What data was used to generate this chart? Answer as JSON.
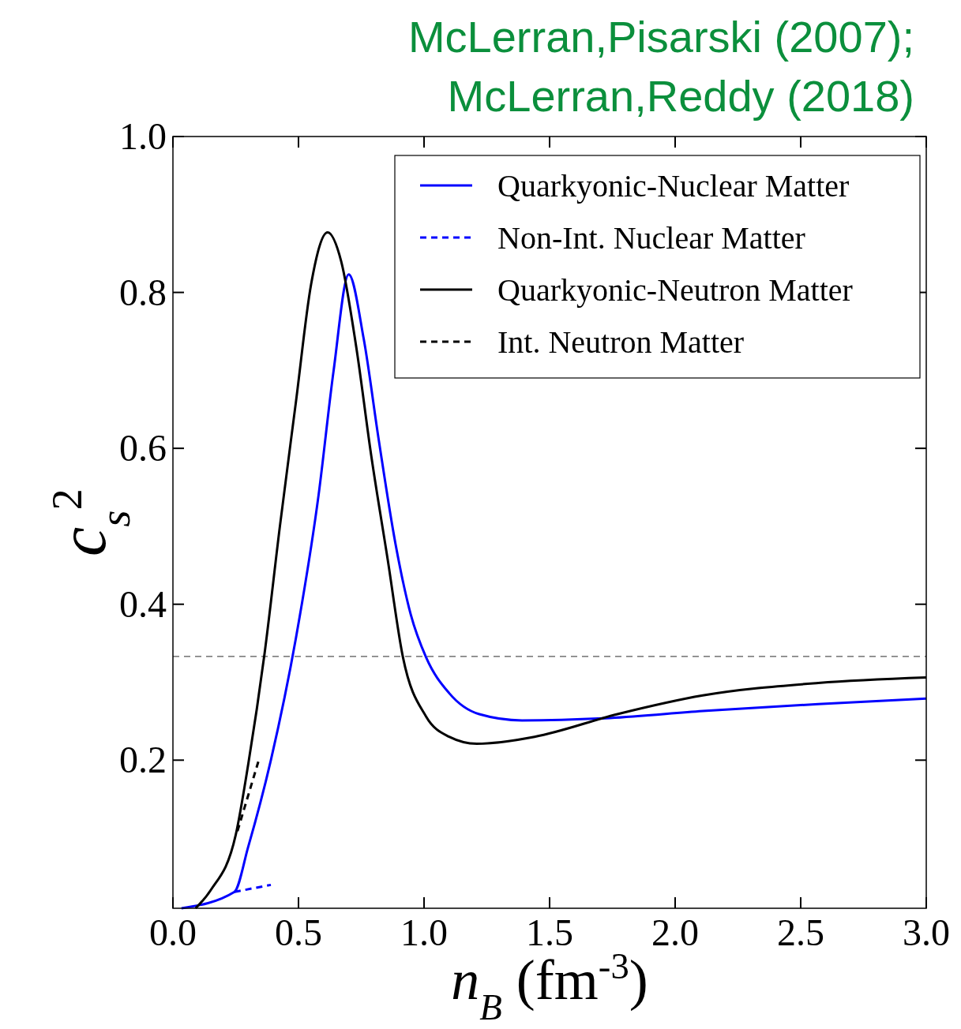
{
  "chart_data": {
    "type": "line",
    "title": "McLerran,Pisarski (2007); McLerran,Reddy (2018)",
    "xlabel": "n$_{B}$ (fm$^{-3}$)",
    "ylabel": "c$_{s}$$^{2}$",
    "xlim": [
      0,
      3.0
    ],
    "ylim": [
      0.01,
      1.0
    ],
    "xticks": [
      {
        "value": 0,
        "label": "0.0"
      },
      {
        "value": 0.5,
        "label": "0.5"
      },
      {
        "value": 1,
        "label": "1.0"
      },
      {
        "value": 1.5,
        "label": "1.5"
      },
      {
        "value": 2,
        "label": "2.0"
      },
      {
        "value": 2.5,
        "label": "2.5"
      },
      {
        "value": 3,
        "label": "3.0"
      }
    ],
    "yticks": [
      {
        "value": 0.2,
        "label": "0.2"
      },
      {
        "value": 0.4,
        "label": "0.4"
      },
      {
        "value": 0.6,
        "label": "0.6"
      },
      {
        "value": 0.8,
        "label": "0.8"
      },
      {
        "value": 1,
        "label": "1.0"
      }
    ],
    "grid": false,
    "legend": "top right",
    "marker": "none",
    "ref_lines": [
      {
        "axis": "y",
        "value": 0.333,
        "color": "#555555",
        "line_style": "dashed"
      }
    ],
    "series": [
      {
        "name": "Quarkyonic-Nuclear Matter",
        "color": "#0000ff",
        "line_style": "solid",
        "x": [
          0.034,
          0.245,
          0.3,
          0.39,
          0.49,
          0.58,
          0.64,
          0.7,
          0.76,
          0.82,
          0.886,
          0.947,
          1.008,
          1.1,
          1.22,
          1.39,
          1.74,
          2.11,
          2.57,
          3.0
        ],
        "values": [
          0.01,
          0.031,
          0.089,
          0.2,
          0.357,
          0.54,
          0.7,
          0.823,
          0.74,
          0.61,
          0.478,
          0.387,
          0.332,
          0.286,
          0.259,
          0.251,
          0.254,
          0.263,
          0.272,
          0.279
        ]
      },
      {
        "name": "Non-Int. Nuclear Matter",
        "color": "#0000ff",
        "line_style": "dashed",
        "x": [
          0.245,
          0.39
        ],
        "values": [
          0.031,
          0.04
        ]
      },
      {
        "name": "Quarkyonic-Neutron Matter",
        "color": "#000000",
        "line_style": "solid",
        "x": [
          0.09,
          0.15,
          0.25,
          0.3,
          0.365,
          0.426,
          0.49,
          0.55,
          0.616,
          0.67,
          0.73,
          0.79,
          0.855,
          0.916,
          1.008,
          1.1,
          1.21,
          1.44,
          1.77,
          2.11,
          2.57,
          3.0
        ],
        "values": [
          0.01,
          0.033,
          0.104,
          0.195,
          0.337,
          0.5,
          0.66,
          0.81,
          0.877,
          0.84,
          0.73,
          0.59,
          0.458,
          0.332,
          0.256,
          0.23,
          0.221,
          0.23,
          0.259,
          0.283,
          0.299,
          0.306
        ]
      },
      {
        "name": "Int. Neutron Matter",
        "color": "#000000",
        "line_style": "dashed",
        "x": [
          0.257,
          0.34
        ],
        "values": [
          0.109,
          0.198
        ]
      }
    ]
  }
}
